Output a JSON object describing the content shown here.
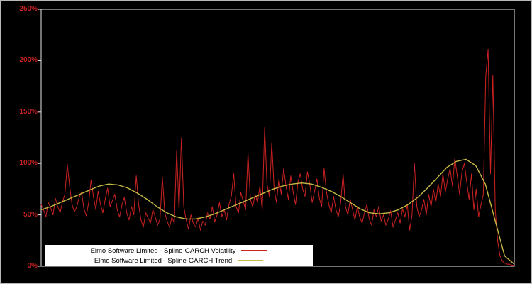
{
  "chart_data": {
    "type": "line",
    "title": "",
    "xlabel": "",
    "ylabel": "",
    "ylim": [
      0,
      250
    ],
    "yticks": [
      "0%",
      "50%",
      "100%",
      "150%",
      "200%",
      "250%"
    ],
    "ytick_values": [
      0,
      50,
      100,
      150,
      200,
      250
    ],
    "grid": "off",
    "legend_position": "bottom-left-inside",
    "background_color": "#000000",
    "axis_color": "#e8e8e8",
    "tick_label_color": "#cc2222",
    "series": [
      {
        "name": "Elmo Software Limited - Spline-GARCH Volatility",
        "color": "#cc2222",
        "unit": "%",
        "values": [
          60,
          55,
          48,
          62,
          57,
          50,
          66,
          58,
          52,
          63,
          70,
          99,
          78,
          60,
          53,
          58,
          67,
          72,
          56,
          49,
          62,
          84,
          68,
          55,
          73,
          60,
          52,
          66,
          76,
          58,
          64,
          70,
          55,
          48,
          60,
          67,
          52,
          45,
          58,
          50,
          88,
          60,
          45,
          38,
          52,
          47,
          42,
          55,
          48,
          40,
          46,
          87,
          52,
          44,
          38,
          48,
          42,
          113,
          55,
          125,
          58,
          45,
          36,
          50,
          42,
          38,
          47,
          35,
          44,
          40,
          52,
          46,
          58,
          43,
          50,
          62,
          48,
          55,
          45,
          60,
          68,
          90,
          58,
          52,
          72,
          63,
          55,
          110,
          65,
          58,
          70,
          62,
          78,
          55,
          135,
          80,
          68,
          120,
          75,
          62,
          85,
          70,
          95,
          78,
          65,
          88,
          72,
          60,
          82,
          90,
          75,
          68,
          92,
          80,
          62,
          73,
          85,
          66,
          58,
          95,
          72,
          60,
          52,
          68,
          55,
          48,
          62,
          90,
          58,
          50,
          65,
          55,
          45,
          58,
          48,
          42,
          52,
          60,
          46,
          40,
          55,
          48,
          58,
          44,
          50,
          40,
          46,
          54,
          38,
          45,
          52,
          42,
          56,
          48,
          60,
          35,
          50,
          100,
          58,
          48,
          55,
          65,
          50,
          70,
          58,
          75,
          62,
          80,
          68,
          90,
          72,
          85,
          95,
          78,
          105,
          88,
          70,
          92,
          100,
          82,
          65,
          90,
          55,
          75,
          48,
          60,
          70,
          185,
          211,
          90,
          186,
          55,
          25,
          10,
          5,
          3,
          2,
          2,
          1,
          1
        ]
      },
      {
        "name": "Elmo Software Limited - Spline-GARCH Trend",
        "color": "#c6b844",
        "unit": "%",
        "values": [
          55,
          58,
          62,
          66,
          70,
          74,
          78,
          80,
          79,
          76,
          71,
          65,
          58,
          52,
          48,
          46,
          46,
          48,
          51,
          55,
          59,
          63,
          67,
          71,
          75,
          78,
          80,
          81,
          80,
          77,
          73,
          68,
          62,
          56,
          52,
          51,
          52,
          55,
          60,
          67,
          76,
          86,
          96,
          102,
          104,
          98,
          80,
          45,
          10,
          2
        ]
      }
    ]
  }
}
